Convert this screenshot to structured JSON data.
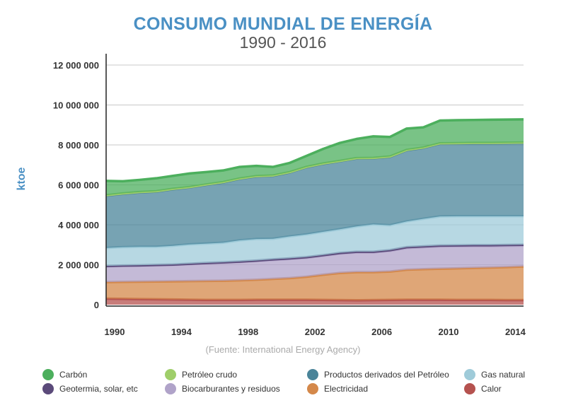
{
  "chart_data": {
    "type": "area",
    "stacked": true,
    "title": "CONSUMO MUNDIAL DE ENERGÍA",
    "subtitle": "1990 - 2016",
    "ylabel": "ktoe",
    "xlabel": "",
    "source": "(Fuente: International Energy Agency)",
    "ylim": [
      0,
      12500000
    ],
    "grid": true,
    "legend_position": "bottom",
    "y_ticks": [
      {
        "value": 0,
        "label": "0"
      },
      {
        "value": 2000000,
        "label": "2 000 000"
      },
      {
        "value": 4000000,
        "label": "4 000 000"
      },
      {
        "value": 6000000,
        "label": "6 000 000"
      },
      {
        "value": 8000000,
        "label": "8 000 000"
      },
      {
        "value": 10000000,
        "label": "10 000 000"
      },
      {
        "value": 12000000,
        "label": "12 000 000"
      }
    ],
    "x_ticks": [
      "1990",
      "1994",
      "1998",
      "2002",
      "2006",
      "2010",
      "2014"
    ],
    "x": [
      1990,
      1991,
      1992,
      1993,
      1994,
      1995,
      1996,
      1997,
      1998,
      1999,
      2000,
      2001,
      2002,
      2003,
      2004,
      2005,
      2006,
      2007,
      2008,
      2009,
      2010,
      2011,
      2012,
      2013,
      2014,
      2015
    ],
    "series": [
      {
        "name": "Calor",
        "color": "#b5524f",
        "values": [
          300000,
          290000,
          280000,
          270000,
          260000,
          250000,
          240000,
          240000,
          240000,
          250000,
          250000,
          250000,
          250000,
          240000,
          230000,
          220000,
          230000,
          240000,
          250000,
          250000,
          250000,
          240000,
          240000,
          240000,
          230000,
          230000
        ]
      },
      {
        "name": "Electricidad",
        "color": "#d4884a",
        "values": [
          830000,
          850000,
          870000,
          890000,
          910000,
          930000,
          950000,
          960000,
          980000,
          1000000,
          1040000,
          1080000,
          1150000,
          1260000,
          1360000,
          1410000,
          1400000,
          1420000,
          1500000,
          1530000,
          1550000,
          1580000,
          1600000,
          1620000,
          1650000,
          1680000
        ]
      },
      {
        "name": "Biocarburantes y residuos",
        "color": "#b0a3c9",
        "values": [
          790000,
          800000,
          800000,
          810000,
          820000,
          850000,
          880000,
          900000,
          920000,
          940000,
          950000,
          960000,
          950000,
          950000,
          970000,
          990000,
          990000,
          1040000,
          1090000,
          1100000,
          1120000,
          1110000,
          1100000,
          1080000,
          1070000,
          1050000
        ]
      },
      {
        "name": "Geotermia, solar, etc",
        "color": "#5b4a7a",
        "values": [
          20000,
          20000,
          20000,
          20000,
          20000,
          20000,
          20000,
          20000,
          20000,
          20000,
          30000,
          30000,
          30000,
          30000,
          30000,
          30000,
          30000,
          30000,
          40000,
          40000,
          40000,
          40000,
          40000,
          40000,
          40000,
          40000
        ]
      },
      {
        "name": "Gas natural",
        "color": "#9fcbd9",
        "values": [
          900000,
          920000,
          930000,
          910000,
          940000,
          970000,
          970000,
          980000,
          1060000,
          1080000,
          1030000,
          1100000,
          1140000,
          1170000,
          1190000,
          1270000,
          1370000,
          1250000,
          1290000,
          1380000,
          1460000,
          1460000,
          1450000,
          1450000,
          1440000,
          1430000
        ]
      },
      {
        "name": "Productos derivados del Petróleo",
        "color": "#4a8499",
        "values": [
          2620000,
          2670000,
          2720000,
          2760000,
          2830000,
          2850000,
          2940000,
          3020000,
          3080000,
          3130000,
          3150000,
          3200000,
          3360000,
          3400000,
          3400000,
          3400000,
          3310000,
          3420000,
          3560000,
          3550000,
          3640000,
          3640000,
          3650000,
          3650000,
          3660000,
          3670000
        ]
      },
      {
        "name": "Petróleo crudo",
        "color": "#9fce6a",
        "values": [
          20000,
          20000,
          20000,
          20000,
          20000,
          20000,
          20000,
          20000,
          20000,
          20000,
          20000,
          20000,
          20000,
          20000,
          20000,
          20000,
          20000,
          20000,
          20000,
          20000,
          20000,
          20000,
          20000,
          20000,
          20000,
          20000
        ]
      },
      {
        "name": "Carbón",
        "color": "#4caf5d",
        "values": [
          720000,
          610000,
          610000,
          650000,
          650000,
          680000,
          620000,
          580000,
          580000,
          510000,
          430000,
          460000,
          550000,
          730000,
          900000,
          960000,
          1080000,
          980000,
          1070000,
          1010000,
          1140000,
          1150000,
          1150000,
          1160000,
          1160000,
          1160000
        ]
      }
    ],
    "legend": [
      {
        "name": "Carbón",
        "color": "#4caf5d"
      },
      {
        "name": "Petróleo crudo",
        "color": "#9fce6a"
      },
      {
        "name": "Productos derivados del Petróleo",
        "color": "#4a8499"
      },
      {
        "name": "Gas natural",
        "color": "#9fcbd9"
      },
      {
        "name": "Geotermia, solar, etc",
        "color": "#5b4a7a"
      },
      {
        "name": "Biocarburantes y residuos",
        "color": "#b0a3c9"
      },
      {
        "name": "Electricidad",
        "color": "#d4884a"
      },
      {
        "name": "Calor",
        "color": "#b5524f"
      }
    ]
  }
}
